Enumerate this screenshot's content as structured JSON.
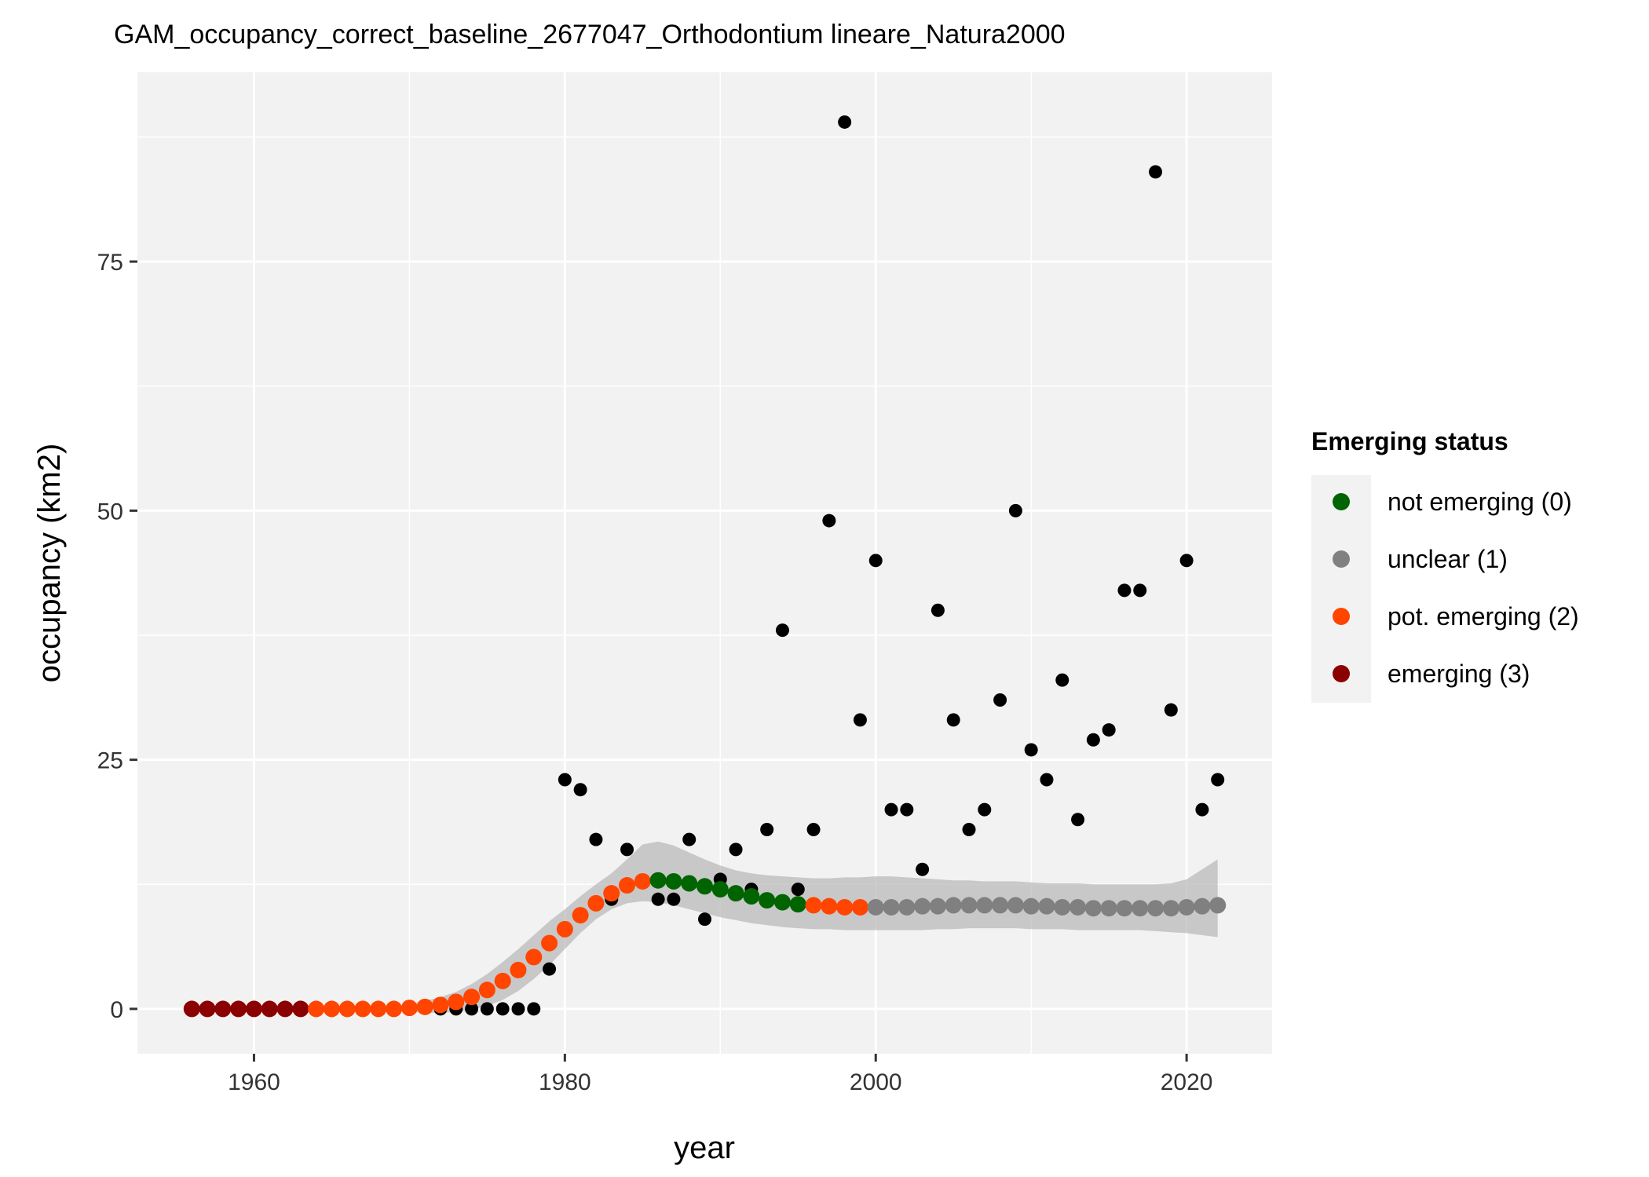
{
  "chart_data": {
    "type": "scatter",
    "title": "GAM_occupancy_correct_baseline_2677047_Orthodontium lineare_Natura2000",
    "xlabel": "year",
    "ylabel": "occupancy (km2)",
    "xlim": [
      1952.5,
      2025.5
    ],
    "ylim": [
      -4.5,
      94
    ],
    "x_ticks": [
      1960,
      1980,
      2000,
      2020
    ],
    "y_ticks": [
      0,
      25,
      50,
      75
    ],
    "grid": true,
    "legend": {
      "title": "Emerging status",
      "placement": "right",
      "entries": [
        {
          "label": "not emerging (0)",
          "color": "#006400"
        },
        {
          "label": "unclear (1)",
          "color": "#808080"
        },
        {
          "label": "pot. emerging (2)",
          "color": "#ff4500"
        },
        {
          "label": "emerging (3)",
          "color": "#8b0000"
        }
      ]
    },
    "observed": {
      "color": "#000000",
      "points": [
        [
          1972,
          0
        ],
        [
          1973,
          0
        ],
        [
          1974,
          0
        ],
        [
          1975,
          0
        ],
        [
          1976,
          0
        ],
        [
          1977,
          0
        ],
        [
          1978,
          0
        ],
        [
          1979,
          4
        ],
        [
          1980,
          23
        ],
        [
          1981,
          22
        ],
        [
          1982,
          17
        ],
        [
          1983,
          11
        ],
        [
          1984,
          16
        ],
        [
          1986,
          11
        ],
        [
          1987,
          11
        ],
        [
          1988,
          17
        ],
        [
          1989,
          9
        ],
        [
          1990,
          13
        ],
        [
          1991,
          16
        ],
        [
          1992,
          12
        ],
        [
          1993,
          18
        ],
        [
          1994,
          38
        ],
        [
          1995,
          12
        ],
        [
          1996,
          18
        ],
        [
          1997,
          49
        ],
        [
          1998,
          89
        ],
        [
          1999,
          29
        ],
        [
          2000,
          45
        ],
        [
          2001,
          20
        ],
        [
          2002,
          20
        ],
        [
          2003,
          14
        ],
        [
          2004,
          40
        ],
        [
          2005,
          29
        ],
        [
          2006,
          18
        ],
        [
          2007,
          20
        ],
        [
          2008,
          31
        ],
        [
          2009,
          50
        ],
        [
          2010,
          26
        ],
        [
          2011,
          23
        ],
        [
          2012,
          33
        ],
        [
          2013,
          19
        ],
        [
          2014,
          27
        ],
        [
          2015,
          28
        ],
        [
          2016,
          42
        ],
        [
          2017,
          42
        ],
        [
          2018,
          84
        ],
        [
          2019,
          30
        ],
        [
          2020,
          45
        ],
        [
          2021,
          20
        ],
        [
          2022,
          23
        ]
      ]
    },
    "fitted": {
      "years": [
        1956,
        1957,
        1958,
        1959,
        1960,
        1961,
        1962,
        1963,
        1964,
        1965,
        1966,
        1967,
        1968,
        1969,
        1970,
        1971,
        1972,
        1973,
        1974,
        1975,
        1976,
        1977,
        1978,
        1979,
        1980,
        1981,
        1982,
        1983,
        1984,
        1985,
        1986,
        1987,
        1988,
        1989,
        1990,
        1991,
        1992,
        1993,
        1994,
        1995,
        1996,
        1997,
        1998,
        1999,
        2000,
        2001,
        2002,
        2003,
        2004,
        2005,
        2006,
        2007,
        2008,
        2009,
        2010,
        2011,
        2012,
        2013,
        2014,
        2015,
        2016,
        2017,
        2018,
        2019,
        2020,
        2021,
        2022
      ],
      "values": [
        0,
        0,
        0,
        0,
        0,
        0,
        0,
        0,
        0,
        0,
        0,
        0,
        0,
        0,
        0.1,
        0.2,
        0.4,
        0.7,
        1.2,
        1.9,
        2.8,
        3.9,
        5.2,
        6.6,
        8.0,
        9.4,
        10.6,
        11.6,
        12.4,
        12.8,
        12.9,
        12.8,
        12.6,
        12.3,
        12.0,
        11.6,
        11.3,
        10.9,
        10.7,
        10.5,
        10.4,
        10.3,
        10.2,
        10.2,
        10.2,
        10.2,
        10.2,
        10.3,
        10.3,
        10.4,
        10.4,
        10.4,
        10.4,
        10.4,
        10.3,
        10.3,
        10.2,
        10.2,
        10.1,
        10.1,
        10.1,
        10.1,
        10.1,
        10.1,
        10.2,
        10.3,
        10.4
      ],
      "status": [
        3,
        3,
        3,
        3,
        3,
        3,
        3,
        3,
        2,
        2,
        2,
        2,
        2,
        2,
        2,
        2,
        2,
        2,
        2,
        2,
        2,
        2,
        2,
        2,
        2,
        2,
        2,
        2,
        2,
        2,
        0,
        0,
        0,
        0,
        0,
        0,
        0,
        0,
        0,
        0,
        2,
        2,
        2,
        2,
        1,
        1,
        1,
        1,
        1,
        1,
        1,
        1,
        1,
        1,
        1,
        1,
        1,
        1,
        1,
        1,
        1,
        1,
        1,
        1,
        1,
        1,
        1
      ],
      "lower": [
        0,
        0,
        0,
        0,
        0,
        0,
        0,
        0,
        0,
        0,
        0,
        0,
        0,
        0,
        -0.3,
        -0.4,
        -0.4,
        -0.3,
        -0.1,
        0.3,
        0.9,
        1.8,
        3.0,
        4.4,
        6.0,
        7.6,
        9.0,
        10.0,
        10.6,
        10.8,
        10.7,
        10.4,
        10.0,
        9.6,
        9.2,
        8.9,
        8.6,
        8.4,
        8.2,
        8.1,
        8.0,
        8.0,
        7.9,
        7.9,
        7.9,
        7.9,
        7.9,
        7.9,
        8.0,
        8.0,
        8.1,
        8.1,
        8.1,
        8.1,
        8.0,
        8.0,
        8.0,
        7.9,
        7.9,
        7.9,
        7.9,
        7.9,
        7.8,
        7.7,
        7.6,
        7.4,
        7.2
      ],
      "upper": [
        0,
        0,
        0,
        0,
        0,
        0,
        0,
        0,
        0,
        0,
        0,
        0,
        0,
        0,
        0.5,
        0.8,
        1.2,
        1.7,
        2.5,
        3.5,
        4.7,
        6.0,
        7.4,
        8.8,
        10.0,
        11.3,
        12.5,
        13.6,
        15.0,
        16.5,
        16.8,
        16.4,
        15.7,
        15.0,
        14.4,
        13.9,
        13.6,
        13.4,
        13.3,
        13.2,
        13.1,
        13.1,
        13.2,
        13.2,
        13.3,
        13.3,
        13.2,
        13.1,
        13.0,
        12.9,
        12.9,
        12.8,
        12.8,
        12.8,
        12.7,
        12.6,
        12.6,
        12.6,
        12.5,
        12.5,
        12.5,
        12.5,
        12.5,
        12.6,
        13.0,
        14.0,
        15.0
      ]
    }
  }
}
